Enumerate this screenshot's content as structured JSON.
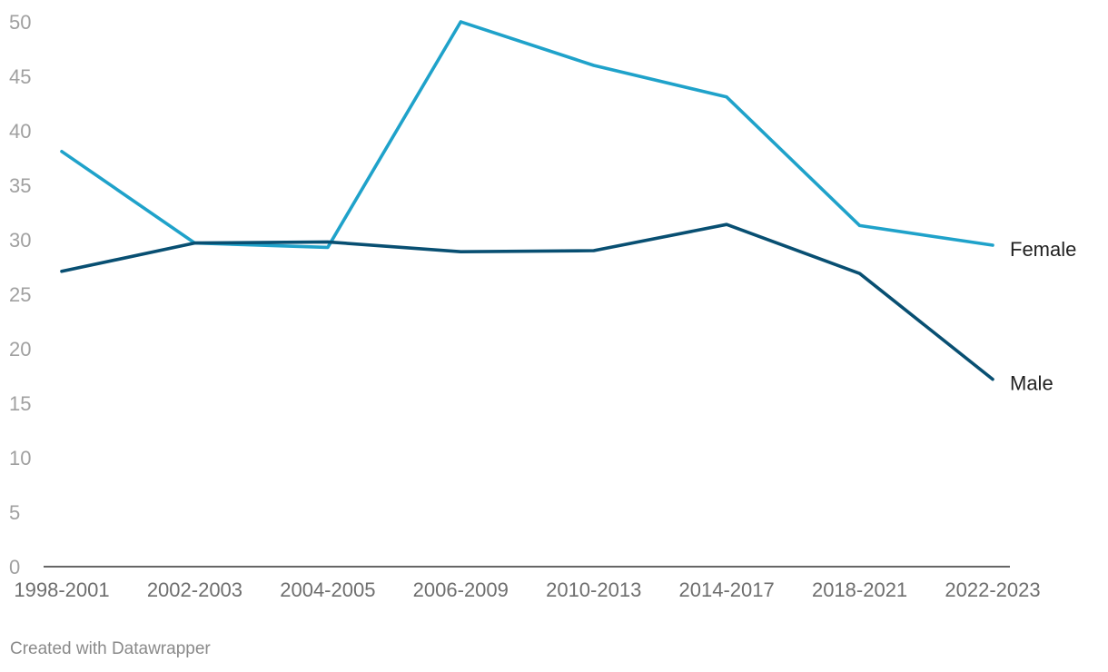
{
  "chart_data": {
    "type": "line",
    "title": "",
    "xlabel": "",
    "ylabel": "",
    "categories": [
      "1998-2001",
      "2002-2003",
      "2004-2005",
      "2006-2009",
      "2010-2013",
      "2014-2017",
      "2018-2021",
      "2022-2023"
    ],
    "yticks": [
      "0",
      "5",
      "10",
      "15",
      "20",
      "25",
      "30",
      "35",
      "40",
      "45",
      "50"
    ],
    "ylim": [
      0,
      50
    ],
    "grid": false,
    "legend": "inline-right",
    "series": [
      {
        "name": "Female",
        "color": "#1fa2ca",
        "values": [
          38.1,
          29.7,
          29.3,
          50.0,
          46.0,
          43.1,
          31.3,
          29.5
        ]
      },
      {
        "name": "Male",
        "color": "#084f72",
        "values": [
          27.1,
          29.7,
          29.8,
          28.9,
          29.0,
          31.4,
          26.9,
          17.2
        ]
      }
    ]
  },
  "footer": {
    "credit": "Created with Datawrapper"
  }
}
